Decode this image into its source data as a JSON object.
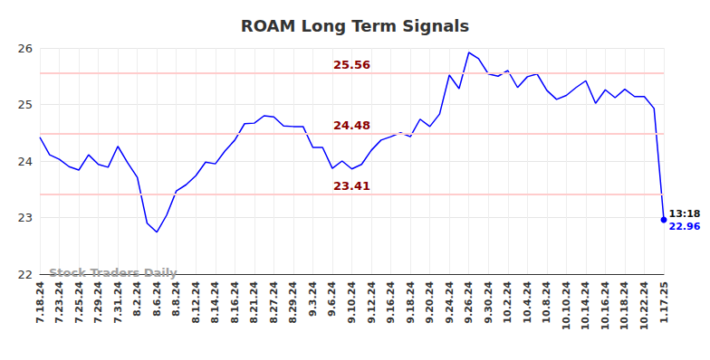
{
  "chart_data": {
    "type": "line",
    "title": "ROAM Long Term Signals",
    "categories": [
      "7.18.24",
      null,
      "7.23.24",
      null,
      "7.25.24",
      null,
      "7.29.24",
      null,
      "7.31.24",
      null,
      "8.2.24",
      null,
      "8.6.24",
      null,
      "8.8.24",
      null,
      "8.12.24",
      null,
      "8.14.24",
      null,
      "8.16.24",
      null,
      "8.21.24",
      null,
      "8.27.24",
      null,
      "8.29.24",
      null,
      "9.3.24",
      null,
      "9.6.24",
      null,
      "9.10.24",
      null,
      "9.12.24",
      null,
      "9.16.24",
      null,
      "9.18.24",
      null,
      "9.20.24",
      null,
      "9.24.24",
      null,
      "9.26.24",
      null,
      "9.30.24",
      null,
      "10.2.24",
      null,
      "10.4.24",
      null,
      "10.8.24",
      null,
      "10.10.24",
      null,
      "10.14.24",
      null,
      "10.16.24",
      null,
      "10.18.24",
      null,
      "10.22.24",
      null,
      "1.17.25"
    ],
    "values": [
      24.42,
      24.11,
      24.03,
      23.9,
      23.84,
      24.11,
      23.94,
      23.89,
      24.26,
      23.97,
      23.71,
      22.9,
      22.74,
      23.04,
      23.47,
      23.58,
      23.74,
      23.98,
      23.95,
      24.18,
      24.37,
      24.66,
      24.67,
      24.8,
      24.78,
      24.62,
      24.61,
      24.61,
      24.24,
      24.24,
      23.87,
      24.0,
      23.86,
      23.94,
      24.19,
      24.37,
      24.43,
      24.5,
      24.43,
      24.74,
      24.61,
      24.83,
      25.52,
      25.28,
      25.92,
      25.81,
      25.54,
      25.5,
      25.6,
      25.3,
      25.49,
      25.54,
      25.25,
      25.09,
      25.16,
      25.3,
      25.42,
      25.02,
      25.26,
      25.12,
      25.27,
      25.14,
      25.14,
      24.93,
      22.96
    ],
    "color": "#0000ff",
    "ylim": [
      22,
      26
    ],
    "yticks": [
      22,
      23,
      24,
      25,
      26
    ],
    "grid": true,
    "levels": [
      25.56,
      24.48,
      23.41
    ],
    "last_point_time": "13:18",
    "watermark": "Stock Traders Daily"
  }
}
